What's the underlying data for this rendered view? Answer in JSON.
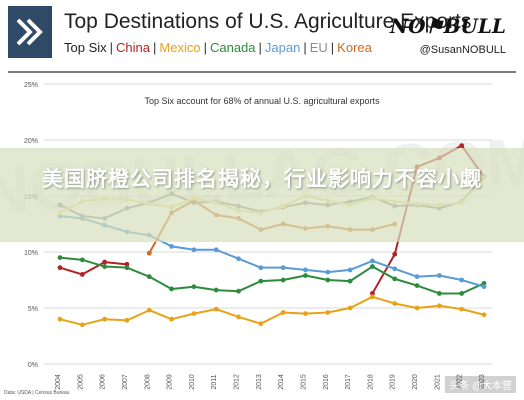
{
  "header": {
    "title": "Top Destinations of U.S. Agriculture Exports",
    "legend_prefix": "Top Six",
    "legend_items": [
      {
        "label": "China",
        "color": "#b22222"
      },
      {
        "label": "Mexico",
        "color": "#e8a21a"
      },
      {
        "label": "Canada",
        "color": "#2e8b3d"
      },
      {
        "label": "Japan",
        "color": "#5b9bd5"
      },
      {
        "label": "EU",
        "color": "#8c8c8c"
      },
      {
        "label": "Korea",
        "color": "#d2691e"
      }
    ],
    "brand": "NO⚑BULL",
    "handle": "@SusanNOBULL"
  },
  "overlay": {
    "banner_text": "美国脐橙公司排名揭秘，行业影响力不容小觑",
    "watermark": "NOBULLAG.COM",
    "credit": "头条 @大本营"
  },
  "source_note": "Data: USDA | Census Bureau",
  "chart_data": {
    "type": "line",
    "title": "Top Six account for 68% of annual U.S. agricultural exports",
    "xlabel": "",
    "ylabel": "",
    "x": [
      "2004",
      "2005",
      "2006",
      "2007",
      "2008",
      "2009",
      "2010",
      "2011",
      "2012",
      "2013",
      "2014",
      "2015",
      "2016",
      "2017",
      "2018",
      "2019",
      "2020",
      "2021",
      "2022",
      "2023"
    ],
    "ylim": [
      0,
      25
    ],
    "yticks": [
      "0%",
      "5%",
      "10%",
      "15%",
      "20%",
      "25%"
    ],
    "grid": true,
    "series": [
      {
        "name": "China",
        "color": "#b22222",
        "values": [
          8.6,
          8.0,
          9.1,
          8.9,
          null,
          null,
          null,
          null,
          null,
          null,
          null,
          null,
          null,
          null,
          6.3,
          9.8,
          17.6,
          18.4,
          19.5,
          16.7
        ]
      },
      {
        "name": "Mexico",
        "color": "#e8a21a",
        "values": [
          4.0,
          3.5,
          4.0,
          3.9,
          4.8,
          4.0,
          4.5,
          4.9,
          4.2,
          3.6,
          4.6,
          4.5,
          4.6,
          5.0,
          6.0,
          5.4,
          5.0,
          5.2,
          4.9,
          4.4
        ]
      },
      {
        "name": "Canada",
        "color": "#2e8b3d",
        "values": [
          9.5,
          9.3,
          8.7,
          8.6,
          7.8,
          6.7,
          6.9,
          6.6,
          6.5,
          7.4,
          7.5,
          7.9,
          7.5,
          7.4,
          8.7,
          7.6,
          7.0,
          6.3,
          6.3,
          7.2
        ]
      },
      {
        "name": "Japan",
        "color": "#5b9bd5",
        "values": [
          13.2,
          13.0,
          12.4,
          11.8,
          11.5,
          10.5,
          10.2,
          10.2,
          9.4,
          8.6,
          8.6,
          8.4,
          8.2,
          8.4,
          9.2,
          8.5,
          7.8,
          7.9,
          7.5,
          6.9
        ]
      },
      {
        "name": "EU",
        "color": "#8c8c8c",
        "values": [
          14.2,
          13.2,
          13.0,
          13.9,
          14.4,
          15.2,
          14.4,
          14.5,
          14.1,
          13.6,
          14.0,
          14.4,
          14.2,
          14.5,
          14.9,
          14.1,
          14.2,
          13.9,
          14.5,
          16.7
        ]
      },
      {
        "name": "Korea",
        "color": "#d2691e",
        "values": [
          null,
          null,
          null,
          null,
          9.9,
          13.5,
          14.6,
          13.3,
          13.0,
          12.0,
          12.5,
          12.1,
          12.3,
          12.0,
          12.0,
          12.5,
          null,
          null,
          null,
          null
        ]
      },
      {
        "name": "",
        "color": "#ecd58a",
        "values": [
          13.5,
          14.5,
          14.8,
          14.7,
          14.3,
          14.0,
          14.8,
          14.4,
          13.7,
          13.5,
          14.1,
          15.0,
          14.6,
          14.2,
          14.8,
          14.5,
          14.3,
          14.2,
          14.4,
          16.6
        ]
      }
    ]
  }
}
